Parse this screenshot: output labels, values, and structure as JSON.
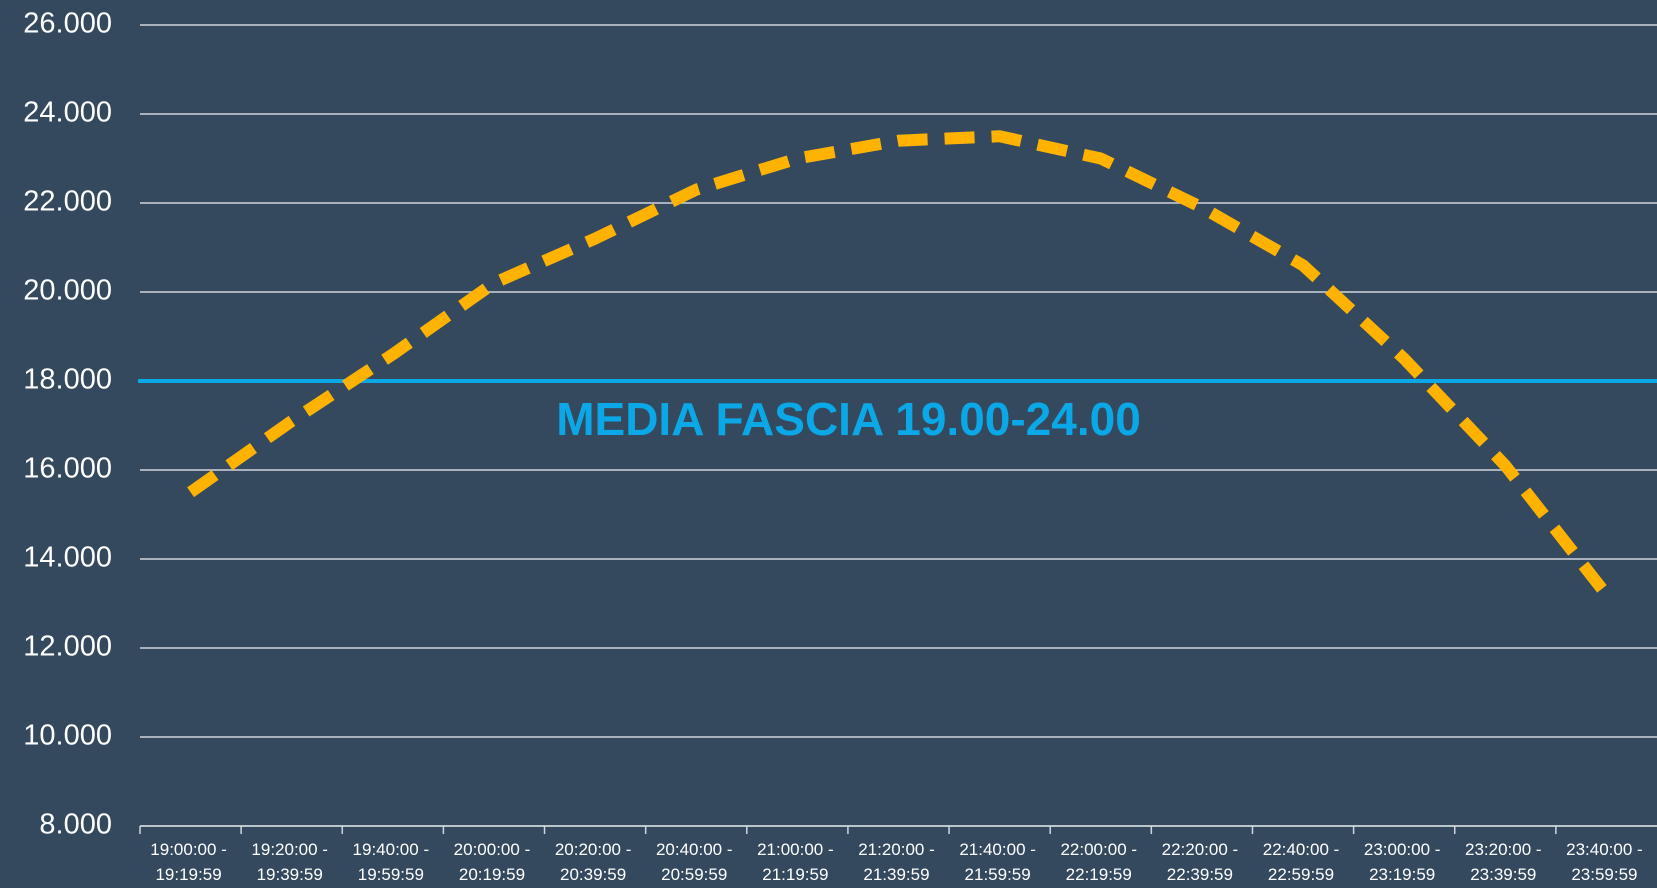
{
  "chart_data": {
    "type": "line",
    "categories": [
      "19:00:00 - 19:19:59",
      "19:20:00 - 19:39:59",
      "19:40:00 - 19:59:59",
      "20:00:00 - 20:19:59",
      "20:20:00 - 20:39:59",
      "20:40:00 - 20:59:59",
      "21:00:00 - 21:19:59",
      "21:20:00 - 21:39:59",
      "21:40:00 - 21:59:59",
      "22:00:00 - 22:19:59",
      "22:20:00 - 22:39:59",
      "22:40:00 - 22:59:59",
      "23:00:00 - 23:19:59",
      "23:20:00 - 23:39:59",
      "23:40:00 - 23:59:59"
    ],
    "series": [
      {
        "color": "#ffb300",
        "values": [
          15500,
          17100,
          18600,
          20200,
          21200,
          22300,
          23000,
          23400,
          23500,
          23000,
          21900,
          20600,
          18500,
          16100,
          13200
        ]
      }
    ],
    "reference_line": {
      "value": 18000,
      "label": "MEDIA FASCIA 19.00-24.00",
      "color": "#0aa8e6"
    },
    "ylim": [
      8000,
      26000
    ],
    "yticks": [
      {
        "value": 8000,
        "label": "8.000"
      },
      {
        "value": 10000,
        "label": "10.000"
      },
      {
        "value": 12000,
        "label": "12.000"
      },
      {
        "value": 14000,
        "label": "14.000"
      },
      {
        "value": 16000,
        "label": "16.000"
      },
      {
        "value": 18000,
        "label": "18.000"
      },
      {
        "value": 20000,
        "label": "20.000"
      },
      {
        "value": 22000,
        "label": "22.000"
      },
      {
        "value": 24000,
        "label": "24.000"
      },
      {
        "value": 26000,
        "label": "26.000"
      }
    ],
    "grid": true
  }
}
